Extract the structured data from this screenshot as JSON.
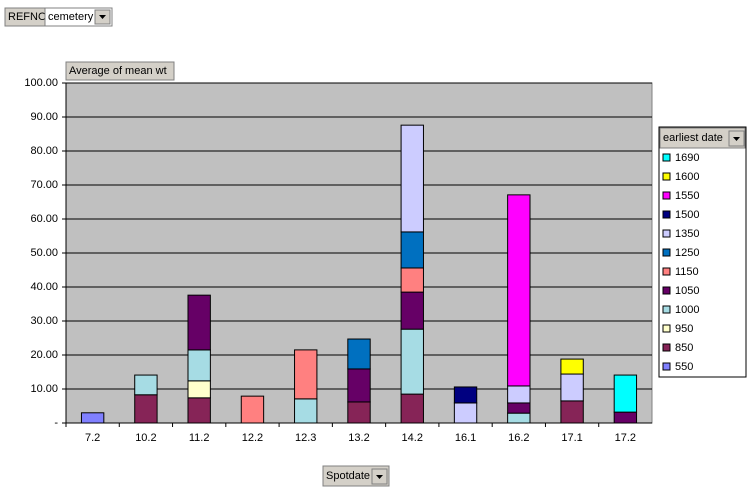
{
  "chart_data": {
    "type": "bar",
    "stacked": true,
    "page_field": "REFNO",
    "page_field_value": "cemetery",
    "title": "Average of mean wt",
    "x_label": "Spotdate",
    "legend_title": "earliest date",
    "legend_position": "right",
    "grid": true,
    "categories": [
      "7.2",
      "10.2",
      "11.2",
      "12.2",
      "12.3",
      "13.2",
      "14.2",
      "16.1",
      "16.2",
      "17.1",
      "17.2"
    ],
    "ylim": [
      0,
      100
    ],
    "yticks": [
      {
        "value": 0,
        "label": "-"
      },
      {
        "value": 10,
        "label": "10.00"
      },
      {
        "value": 20,
        "label": "20.00"
      },
      {
        "value": 30,
        "label": "30.00"
      },
      {
        "value": 40,
        "label": "40.00"
      },
      {
        "value": 50,
        "label": "50.00"
      },
      {
        "value": 60,
        "label": "60.00"
      },
      {
        "value": 70,
        "label": "70.00"
      },
      {
        "value": 80,
        "label": "80.00"
      },
      {
        "value": 90,
        "label": "90.00"
      },
      {
        "value": 100,
        "label": "100.00"
      }
    ],
    "series": [
      {
        "name": "1690",
        "color": "#00ffff",
        "values": [
          null,
          null,
          null,
          null,
          null,
          null,
          null,
          null,
          null,
          null,
          10.9
        ]
      },
      {
        "name": "1600",
        "color": "#ffff00",
        "values": [
          null,
          null,
          null,
          null,
          null,
          null,
          null,
          null,
          null,
          4.4,
          null
        ]
      },
      {
        "name": "1550",
        "color": "#ff00ff",
        "values": [
          null,
          null,
          null,
          null,
          null,
          null,
          null,
          null,
          56.2,
          null,
          null
        ]
      },
      {
        "name": "1500",
        "color": "#000080",
        "values": [
          null,
          null,
          null,
          null,
          null,
          null,
          null,
          4.7,
          null,
          null,
          null
        ]
      },
      {
        "name": "1350",
        "color": "#ccccff",
        "values": [
          null,
          null,
          null,
          null,
          null,
          null,
          31.4,
          5.9,
          5.0,
          7.9,
          null
        ]
      },
      {
        "name": "1250",
        "color": "#0070c0",
        "values": [
          null,
          null,
          null,
          null,
          null,
          8.8,
          10.6,
          null,
          null,
          null,
          null
        ]
      },
      {
        "name": "1150",
        "color": "#ff8080",
        "values": [
          null,
          null,
          null,
          7.9,
          14.4,
          null,
          7.1,
          null,
          null,
          null,
          null
        ]
      },
      {
        "name": "1050",
        "color": "#660066",
        "values": [
          null,
          null,
          16.1,
          null,
          null,
          9.7,
          10.9,
          null,
          3.0,
          null,
          3.2
        ]
      },
      {
        "name": "1000",
        "color": "#a6dce4",
        "values": [
          null,
          5.8,
          9.1,
          null,
          7.1,
          null,
          19.1,
          null,
          2.9,
          null,
          null
        ]
      },
      {
        "name": "950",
        "color": "#ffffcc",
        "values": [
          null,
          null,
          5.0,
          null,
          null,
          null,
          null,
          null,
          null,
          null,
          null
        ]
      },
      {
        "name": "850",
        "color": "#862457",
        "values": [
          null,
          8.3,
          7.4,
          null,
          null,
          6.2,
          8.5,
          null,
          null,
          6.5,
          null
        ]
      },
      {
        "name": "550",
        "color": "#8080ff",
        "values": [
          3.0,
          null,
          null,
          null,
          null,
          null,
          null,
          null,
          null,
          null,
          null
        ]
      }
    ]
  }
}
